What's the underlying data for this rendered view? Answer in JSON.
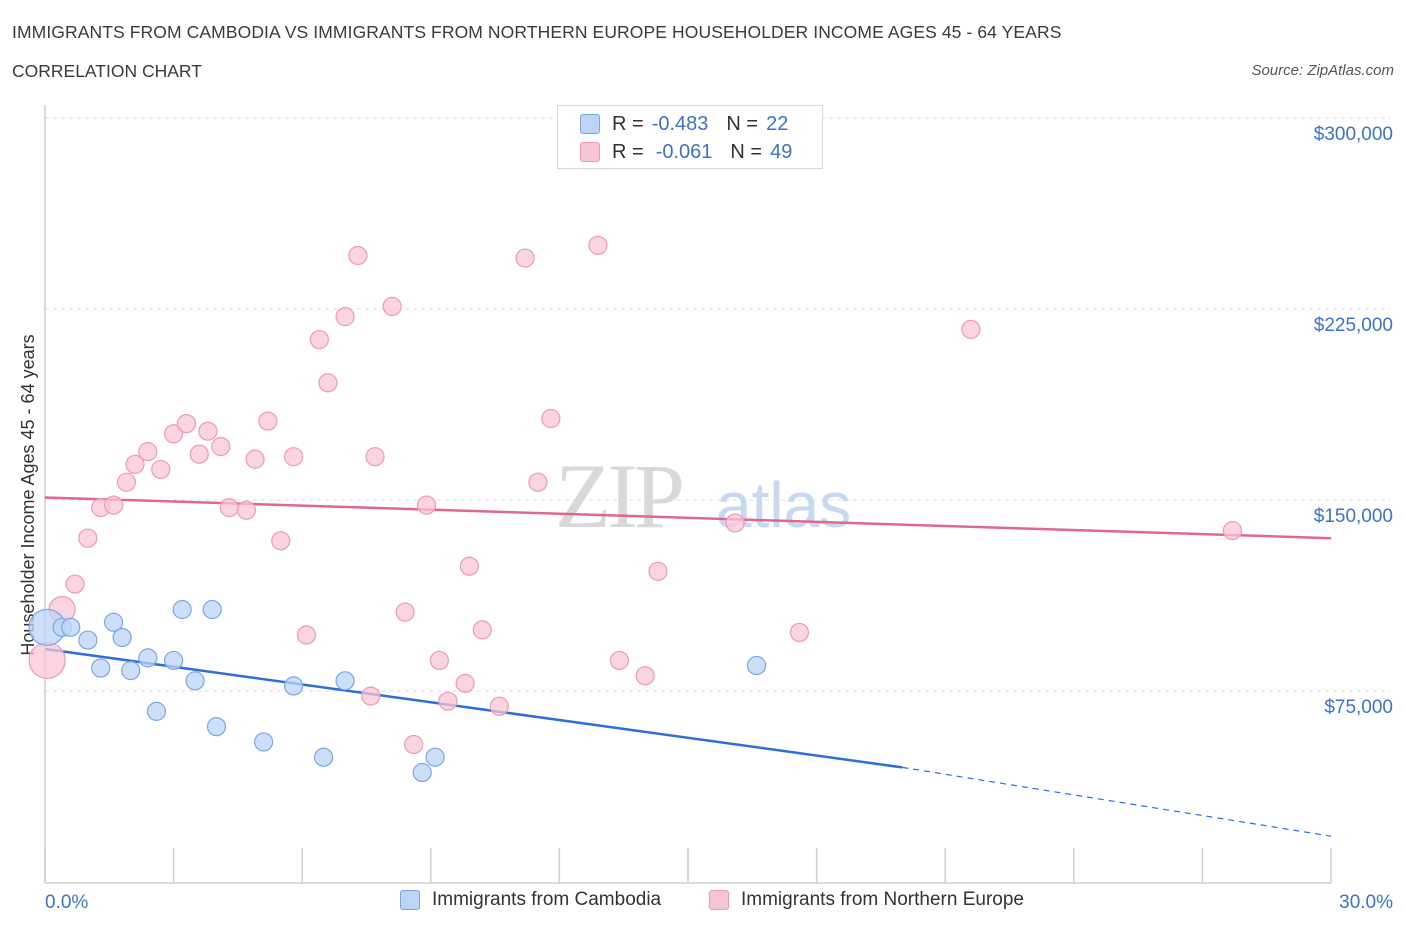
{
  "header": {
    "title": "IMMIGRANTS FROM CAMBODIA VS IMMIGRANTS FROM NORTHERN EUROPE HOUSEHOLDER INCOME AGES 45 - 64 YEARS",
    "subtitle": "CORRELATION CHART",
    "source": "Source: ZipAtlas.com"
  },
  "legend": {
    "rows": [
      {
        "r_label": "R =",
        "r_value": "-0.483",
        "n_label": "N =",
        "n_value": "22"
      },
      {
        "r_label": "R =",
        "r_value": "-0.061",
        "n_label": "N =",
        "n_value": "49"
      }
    ]
  },
  "watermark": {
    "zip": "ZIP",
    "atlas": "atlas"
  },
  "colors": {
    "cambodia_fill": "#bcd4f5",
    "cambodia_stroke": "#7aa6e6",
    "cambodia_line": "#2f6fd4",
    "neurope_fill": "#f8c5d5",
    "neurope_stroke": "#ee9ab6",
    "neurope_line": "#e2678f",
    "axis_text": "#3d73c6",
    "grid": "#dcdcdc"
  },
  "chart_data": {
    "type": "scatter",
    "title": "IMMIGRANTS FROM CAMBODIA VS IMMIGRANTS FROM NORTHERN EUROPE HOUSEHOLDER INCOME AGES 45 - 64 YEARS",
    "xlabel": "",
    "ylabel": "Householder Income Ages 45 - 64 years",
    "xlim": [
      0,
      30
    ],
    "ylim": [
      0,
      300000
    ],
    "x_tick_labels": [
      "0.0%",
      "30.0%"
    ],
    "y_ticks": [
      75000,
      150000,
      225000,
      300000
    ],
    "y_tick_labels": [
      "$75,000",
      "$150,000",
      "$225,000",
      "$300,000"
    ],
    "grid": true,
    "series": [
      {
        "name": "Immigrants from Cambodia",
        "r": -0.483,
        "n": 22,
        "trend": {
          "x": [
            0,
            20
          ],
          "y": [
            91500,
            45000
          ]
        },
        "trend_dashed": {
          "x": [
            20,
            30
          ],
          "y": [
            45000,
            18000
          ]
        },
        "points": [
          {
            "x": 0.05,
            "y": 100000,
            "big": true
          },
          {
            "x": 0.4,
            "y": 100000
          },
          {
            "x": 0.6,
            "y": 100000
          },
          {
            "x": 1.0,
            "y": 95000
          },
          {
            "x": 1.3,
            "y": 84000
          },
          {
            "x": 1.6,
            "y": 102000
          },
          {
            "x": 1.8,
            "y": 96000
          },
          {
            "x": 2.0,
            "y": 83000
          },
          {
            "x": 2.4,
            "y": 88000
          },
          {
            "x": 2.6,
            "y": 67000
          },
          {
            "x": 3.0,
            "y": 87000
          },
          {
            "x": 3.2,
            "y": 107000
          },
          {
            "x": 3.5,
            "y": 79000
          },
          {
            "x": 3.9,
            "y": 107000
          },
          {
            "x": 4.0,
            "y": 61000
          },
          {
            "x": 5.1,
            "y": 55000
          },
          {
            "x": 5.8,
            "y": 77000
          },
          {
            "x": 6.5,
            "y": 49000
          },
          {
            "x": 7.0,
            "y": 79000
          },
          {
            "x": 8.8,
            "y": 43000
          },
          {
            "x": 9.1,
            "y": 49000
          },
          {
            "x": 16.6,
            "y": 85000
          }
        ]
      },
      {
        "name": "Immigrants from Northern Europe",
        "r": -0.061,
        "n": 49,
        "trend": {
          "x": [
            0,
            30
          ],
          "y": [
            151000,
            135000
          ]
        },
        "points": [
          {
            "x": 0.05,
            "y": 87000,
            "big": true
          },
          {
            "x": 0.4,
            "y": 107000,
            "mid": true
          },
          {
            "x": 0.7,
            "y": 117000
          },
          {
            "x": 1.0,
            "y": 135000
          },
          {
            "x": 1.3,
            "y": 147000
          },
          {
            "x": 1.6,
            "y": 148000
          },
          {
            "x": 1.9,
            "y": 157000
          },
          {
            "x": 2.1,
            "y": 164000
          },
          {
            "x": 2.4,
            "y": 169000
          },
          {
            "x": 2.7,
            "y": 162000
          },
          {
            "x": 3.0,
            "y": 176000
          },
          {
            "x": 3.3,
            "y": 180000
          },
          {
            "x": 3.6,
            "y": 168000
          },
          {
            "x": 3.8,
            "y": 177000
          },
          {
            "x": 4.1,
            "y": 171000
          },
          {
            "x": 4.3,
            "y": 147000
          },
          {
            "x": 4.7,
            "y": 146000
          },
          {
            "x": 4.9,
            "y": 166000
          },
          {
            "x": 5.2,
            "y": 181000
          },
          {
            "x": 5.5,
            "y": 134000
          },
          {
            "x": 5.8,
            "y": 167000
          },
          {
            "x": 6.1,
            "y": 97000
          },
          {
            "x": 6.4,
            "y": 213000
          },
          {
            "x": 6.6,
            "y": 196000
          },
          {
            "x": 7.0,
            "y": 222000
          },
          {
            "x": 7.3,
            "y": 246000
          },
          {
            "x": 7.6,
            "y": 73000
          },
          {
            "x": 7.7,
            "y": 167000
          },
          {
            "x": 8.1,
            "y": 226000
          },
          {
            "x": 8.4,
            "y": 106000
          },
          {
            "x": 8.6,
            "y": 54000
          },
          {
            "x": 8.9,
            "y": 148000
          },
          {
            "x": 9.2,
            "y": 87000
          },
          {
            "x": 9.4,
            "y": 71000
          },
          {
            "x": 9.8,
            "y": 78000
          },
          {
            "x": 9.9,
            "y": 124000
          },
          {
            "x": 10.2,
            "y": 99000
          },
          {
            "x": 10.6,
            "y": 69000
          },
          {
            "x": 11.2,
            "y": 245000
          },
          {
            "x": 11.5,
            "y": 157000
          },
          {
            "x": 11.8,
            "y": 182000
          },
          {
            "x": 12.9,
            "y": 250000
          },
          {
            "x": 13.4,
            "y": 87000
          },
          {
            "x": 14.0,
            "y": 81000
          },
          {
            "x": 14.3,
            "y": 122000
          },
          {
            "x": 16.1,
            "y": 141000
          },
          {
            "x": 17.6,
            "y": 98000
          },
          {
            "x": 21.6,
            "y": 217000
          },
          {
            "x": 27.7,
            "y": 138000
          }
        ]
      }
    ]
  }
}
